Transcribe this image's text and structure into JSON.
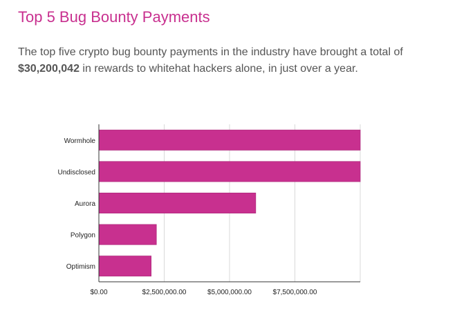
{
  "header": {
    "title": "Top 5 Bug Bounty Payments",
    "subtitle_pre": "The top five crypto bug bounty payments in the industry have brought a total of ",
    "subtitle_total": "$30,200,042",
    "subtitle_post": " in rewards to whitehat hackers alone, in just over a year."
  },
  "colors": {
    "accent": "#c8308f",
    "bar": "#c8308f",
    "bar_stroke": "#b02a7d",
    "grid": "#d9d9d9",
    "axis": "#333333",
    "text": "#555555"
  },
  "chart_data": {
    "type": "bar",
    "orientation": "horizontal",
    "categories": [
      "Wormhole",
      "Undisclosed",
      "Aurora",
      "Polygon",
      "Optimism"
    ],
    "values": [
      10000000,
      10000000,
      6000000,
      2200000,
      2000042
    ],
    "xlim": [
      0,
      10000000
    ],
    "xticks": [
      0,
      2500000,
      5000000,
      7500000
    ],
    "xtick_labels": [
      "$0.00",
      "$2,500,000.00",
      "$5,000,000.00",
      "$7,500,000.00"
    ],
    "grid": true,
    "legend": "none"
  }
}
